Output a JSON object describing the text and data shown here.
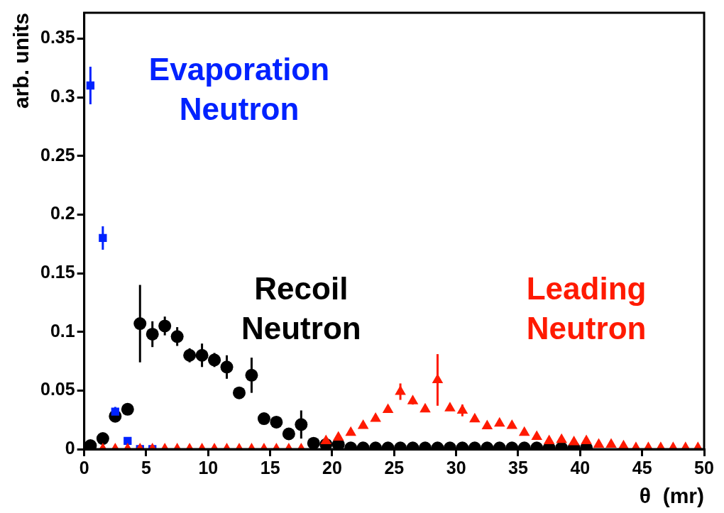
{
  "chart_data": {
    "type": "scatter",
    "xlabel": "θ  (mr)",
    "ylabel": "arb. units",
    "xlim": [
      0,
      50
    ],
    "ylim": [
      0,
      0.372
    ],
    "xticks": [
      0,
      5,
      10,
      15,
      20,
      25,
      30,
      35,
      40,
      45,
      50
    ],
    "yticks": [
      0,
      0.05,
      {
        "value": 0.1,
        "label": "0.1"
      },
      0.15,
      {
        "value": 0.2,
        "label": "0.2"
      },
      0.25,
      {
        "value": 0.3,
        "label": "0.3"
      },
      0.35
    ],
    "grid": false,
    "legend": false,
    "series": [
      {
        "name": "Evaporation Neutron",
        "color": "#0022ff",
        "marker": "square",
        "x": [
          0.5,
          1.5,
          2.5,
          3.5,
          4.5,
          5.5
        ],
        "values": [
          0.31,
          0.18,
          0.032,
          0.007,
          0,
          0
        ],
        "errors": [
          0.016,
          0.01,
          0.004,
          0.003,
          null,
          null
        ]
      },
      {
        "name": "Recoil Neutron",
        "color": "#000000",
        "marker": "circle",
        "x": [
          0.5,
          1.5,
          2.5,
          3.5,
          4.5,
          5.5,
          6.5,
          7.5,
          8.5,
          9.5,
          10.5,
          11.5,
          12.5,
          13.5,
          14.5,
          15.5,
          16.5,
          17.5,
          18.5,
          19.5,
          20.5,
          21.5,
          22.5,
          23.5,
          24.5,
          25.5,
          26.5,
          27.5,
          28.5,
          29.5,
          30.5,
          31.5,
          32.5,
          33.5,
          34.5,
          35.5,
          36.5,
          37.5,
          38.5,
          39.5,
          40.5
        ],
        "values": [
          0.003,
          0.009,
          0.028,
          0.034,
          0.107,
          0.098,
          0.105,
          0.096,
          0.08,
          0.08,
          0.076,
          0.07,
          0.048,
          0.063,
          0.026,
          0.023,
          0.013,
          0.021,
          0.005,
          0.004,
          0.004,
          0.001,
          0.001,
          0.001,
          0.001,
          0.001,
          0.001,
          0.001,
          0.001,
          0.001,
          0.001,
          0.001,
          0.001,
          0.001,
          0.001,
          0.001,
          0.001,
          0.001,
          0.001,
          0.001,
          0.001
        ],
        "errors": [
          0.002,
          0.002,
          0.005,
          0.002,
          0.033,
          0.011,
          0.008,
          0.008,
          0.006,
          0.01,
          0.006,
          0.01,
          0.005,
          0.015,
          0.002,
          0.002,
          0.003,
          0.012,
          0.002,
          0.002,
          0.002,
          null,
          null,
          null,
          null,
          null,
          null,
          null,
          null,
          null,
          null,
          null,
          null,
          null,
          null,
          null,
          null,
          null,
          null,
          null,
          null
        ]
      },
      {
        "name": "Leading Neutron",
        "color": "#ff1a00",
        "marker": "triangle",
        "x": [
          1.5,
          2.5,
          3.5,
          4.5,
          5.5,
          6.5,
          7.5,
          8.5,
          9.5,
          10.5,
          11.5,
          12.5,
          13.5,
          14.5,
          15.5,
          16.5,
          17.5,
          18.5,
          19.5,
          20.5,
          21.5,
          22.5,
          23.5,
          24.5,
          25.5,
          26.5,
          27.5,
          28.5,
          29.5,
          30.5,
          31.5,
          32.5,
          33.5,
          34.5,
          35.5,
          36.5,
          37.5,
          38.5,
          39.5,
          40.5,
          41.5,
          42.5,
          43.5,
          44.5,
          45.5,
          46.5,
          47.5,
          48.5,
          49.5
        ],
        "values": [
          0,
          0,
          0,
          0,
          0,
          0,
          0,
          0,
          0,
          0,
          0,
          0,
          0,
          0,
          0,
          0,
          0,
          null,
          0.007,
          0.01,
          0.014,
          0.02,
          0.026,
          0.0335,
          0.049,
          0.041,
          0.034,
          0.059,
          0.035,
          0.033,
          0.0255,
          0.0196,
          0.022,
          0.02,
          0.014,
          0.0106,
          0.007,
          0.008,
          0.006,
          0.007,
          0.004,
          0.004,
          0.0026,
          0.001,
          0.001,
          0.001,
          0.001,
          0.001,
          0.001
        ],
        "errors": [
          null,
          null,
          null,
          null,
          null,
          null,
          null,
          null,
          null,
          null,
          null,
          null,
          null,
          null,
          null,
          null,
          null,
          null,
          null,
          0.002,
          0.002,
          0.002,
          0.002,
          0.002,
          0.007,
          0.003,
          0.002,
          0.022,
          0.002,
          0.005,
          0.002,
          0.002,
          0.002,
          0.002,
          0.002,
          0.002,
          null,
          0.002,
          null,
          null,
          null,
          null,
          null,
          null,
          null,
          null,
          null,
          null,
          null
        ]
      }
    ]
  }
}
